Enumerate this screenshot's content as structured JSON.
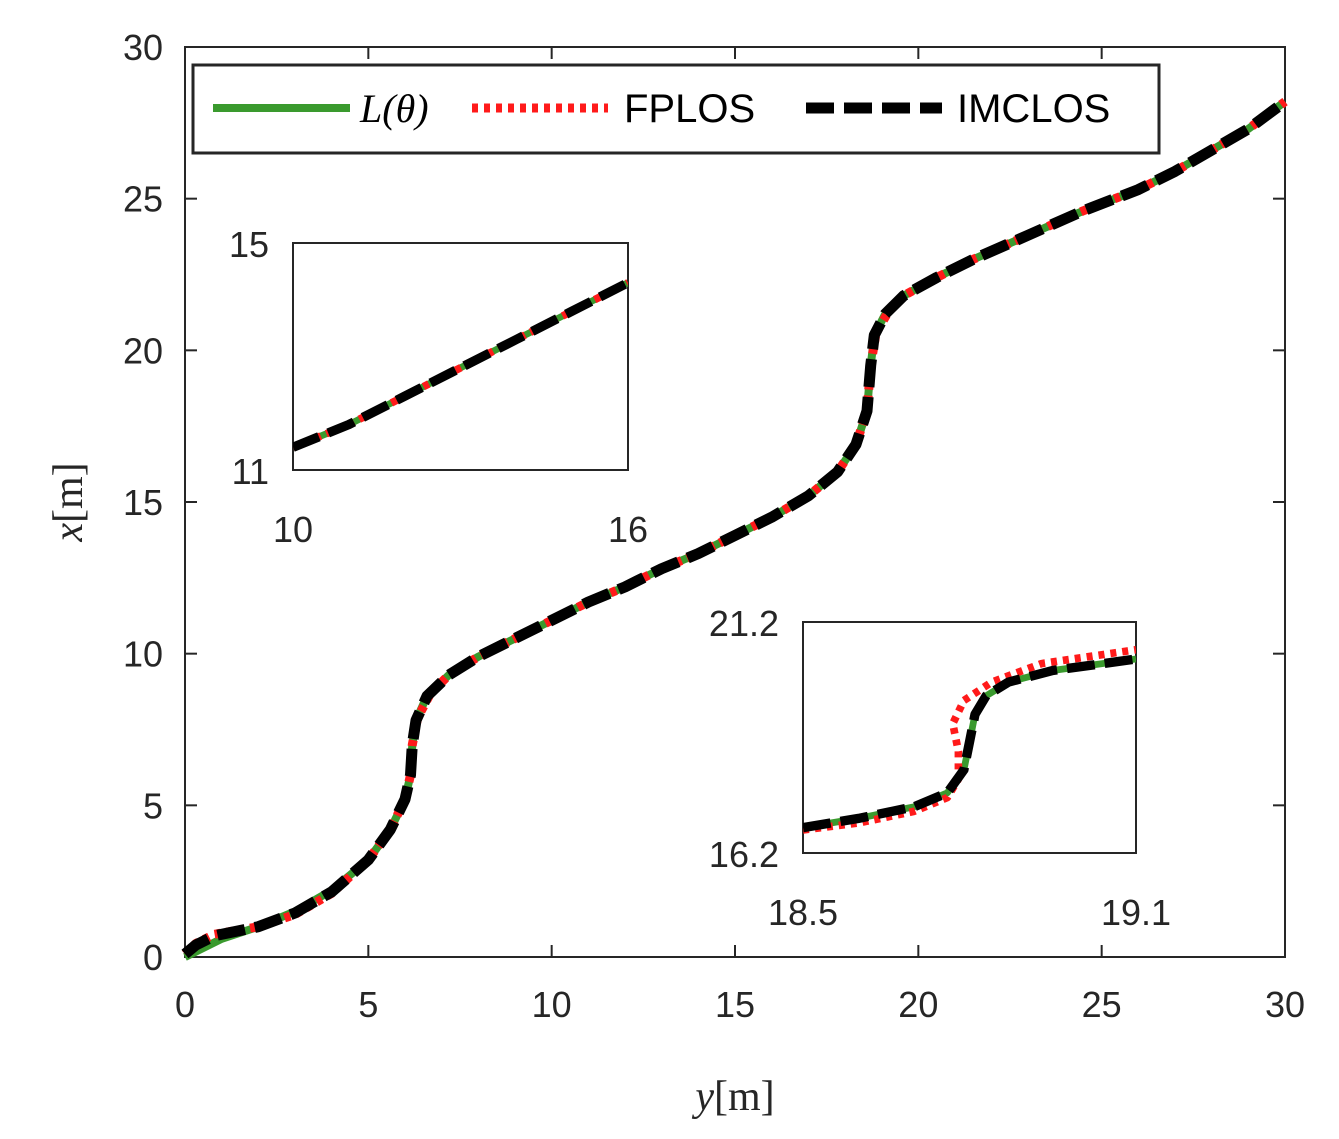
{
  "chart_data": {
    "type": "line",
    "title": "",
    "xlabel": "y[m]",
    "ylabel": "x[m]",
    "xlabel_var": "y",
    "xlabel_unit": "[m]",
    "ylabel_var": "x",
    "ylabel_unit": "[m]",
    "xlim": [
      0,
      30
    ],
    "ylim": [
      0,
      30
    ],
    "xticks": [
      0,
      5,
      10,
      15,
      20,
      25,
      30
    ],
    "yticks": [
      0,
      5,
      10,
      15,
      20,
      25,
      30
    ],
    "grid": false,
    "legend_position": "top",
    "legend": [
      {
        "name": "L(θ)",
        "color": "#3a9a2e",
        "style": "solid"
      },
      {
        "name": "FPLOS",
        "color": "#ff1a1a",
        "style": "dotted"
      },
      {
        "name": "IMCLOS",
        "color": "#000000",
        "style": "dashed"
      }
    ],
    "series": [
      {
        "name": "L(θ)",
        "color": "#3a9a2e",
        "points": [
          [
            0,
            0
          ],
          [
            0.5,
            0.3
          ],
          [
            1,
            0.6
          ],
          [
            2,
            1.0
          ],
          [
            3,
            1.5
          ],
          [
            4,
            2.2
          ],
          [
            5,
            3.2
          ],
          [
            5.6,
            4.2
          ],
          [
            6,
            5.2
          ],
          [
            6.15,
            6.0
          ],
          [
            6.2,
            7.0
          ],
          [
            6.3,
            7.8
          ],
          [
            6.6,
            8.6
          ],
          [
            7.2,
            9.3
          ],
          [
            8,
            9.9
          ],
          [
            9,
            10.5
          ],
          [
            10,
            11.1
          ],
          [
            11,
            11.7
          ],
          [
            12,
            12.2
          ],
          [
            13,
            12.8
          ],
          [
            14,
            13.3
          ],
          [
            15,
            13.9
          ],
          [
            16,
            14.5
          ],
          [
            17,
            15.2
          ],
          [
            17.8,
            16.0
          ],
          [
            18.3,
            16.9
          ],
          [
            18.6,
            18.0
          ],
          [
            18.7,
            19.5
          ],
          [
            18.8,
            20.5
          ],
          [
            19.1,
            21.2
          ],
          [
            19.6,
            21.8
          ],
          [
            20.5,
            22.4
          ],
          [
            21.5,
            23.0
          ],
          [
            23,
            23.8
          ],
          [
            24.5,
            24.6
          ],
          [
            26,
            25.3
          ],
          [
            27,
            25.9
          ],
          [
            28,
            26.6
          ],
          [
            29,
            27.3
          ],
          [
            30,
            28.2
          ]
        ]
      },
      {
        "name": "FPLOS",
        "color": "#ff1a1a",
        "points": [
          [
            0,
            0.1
          ],
          [
            0.3,
            0.45
          ],
          [
            0.8,
            0.75
          ],
          [
            2,
            1.0
          ],
          [
            3,
            1.4
          ],
          [
            4,
            2.1
          ],
          [
            5,
            3.2
          ],
          [
            5.6,
            4.2
          ],
          [
            6,
            5.2
          ],
          [
            6.15,
            6.0
          ],
          [
            6.2,
            7.0
          ],
          [
            6.35,
            7.9
          ],
          [
            6.7,
            8.7
          ],
          [
            7.2,
            9.3
          ],
          [
            8,
            9.9
          ],
          [
            9,
            10.5
          ],
          [
            10,
            11.1
          ],
          [
            11,
            11.7
          ],
          [
            12,
            12.2
          ],
          [
            13,
            12.8
          ],
          [
            14,
            13.3
          ],
          [
            15,
            13.9
          ],
          [
            16,
            14.5
          ],
          [
            17,
            15.2
          ],
          [
            17.8,
            16.0
          ],
          [
            18.3,
            16.9
          ],
          [
            18.6,
            18.0
          ],
          [
            18.7,
            19.5
          ],
          [
            18.85,
            20.6
          ],
          [
            19.2,
            21.3
          ],
          [
            19.6,
            21.8
          ],
          [
            20.5,
            22.4
          ],
          [
            21.5,
            23.0
          ],
          [
            23,
            23.8
          ],
          [
            24.5,
            24.6
          ],
          [
            26,
            25.3
          ],
          [
            27,
            25.9
          ],
          [
            28,
            26.6
          ],
          [
            29,
            27.3
          ],
          [
            30,
            28.2
          ]
        ]
      },
      {
        "name": "IMCLOS",
        "color": "#000000",
        "points": [
          [
            0,
            0.1
          ],
          [
            0.3,
            0.4
          ],
          [
            0.8,
            0.7
          ],
          [
            2,
            1.0
          ],
          [
            3,
            1.45
          ],
          [
            4,
            2.15
          ],
          [
            5,
            3.2
          ],
          [
            5.6,
            4.2
          ],
          [
            6,
            5.2
          ],
          [
            6.15,
            6.0
          ],
          [
            6.2,
            7.0
          ],
          [
            6.3,
            7.8
          ],
          [
            6.6,
            8.6
          ],
          [
            7.2,
            9.3
          ],
          [
            8,
            9.9
          ],
          [
            9,
            10.5
          ],
          [
            10,
            11.1
          ],
          [
            11,
            11.7
          ],
          [
            12,
            12.2
          ],
          [
            13,
            12.8
          ],
          [
            14,
            13.3
          ],
          [
            15,
            13.9
          ],
          [
            16,
            14.5
          ],
          [
            17,
            15.2
          ],
          [
            17.8,
            16.0
          ],
          [
            18.3,
            16.9
          ],
          [
            18.6,
            18.0
          ],
          [
            18.7,
            19.5
          ],
          [
            18.8,
            20.5
          ],
          [
            19.1,
            21.2
          ],
          [
            19.6,
            21.8
          ],
          [
            20.5,
            22.4
          ],
          [
            21.5,
            23.0
          ],
          [
            23,
            23.8
          ],
          [
            24.5,
            24.6
          ],
          [
            26,
            25.3
          ],
          [
            27,
            25.9
          ],
          [
            28,
            26.6
          ],
          [
            29,
            27.3
          ],
          [
            30,
            28.2
          ]
        ]
      }
    ],
    "insets": [
      {
        "name": "inset-upper-left",
        "xlim": [
          10,
          16
        ],
        "ylim": [
          11,
          15
        ],
        "xticks": [
          10,
          16
        ],
        "yticks": [
          11,
          15
        ],
        "series": [
          {
            "name": "L(θ)",
            "points": [
              [
                10,
                11.4
              ],
              [
                11,
                11.8
              ],
              [
                12,
                12.3
              ],
              [
                13,
                12.8
              ],
              [
                14,
                13.3
              ],
              [
                15,
                13.8
              ],
              [
                16,
                14.3
              ]
            ]
          },
          {
            "name": "FPLOS",
            "points": [
              [
                10,
                11.4
              ],
              [
                11,
                11.8
              ],
              [
                12,
                12.3
              ],
              [
                13,
                12.8
              ],
              [
                14,
                13.3
              ],
              [
                15,
                13.8
              ],
              [
                16,
                14.3
              ]
            ]
          },
          {
            "name": "IMCLOS",
            "points": [
              [
                10,
                11.4
              ],
              [
                11,
                11.8
              ],
              [
                12,
                12.3
              ],
              [
                13,
                12.8
              ],
              [
                14,
                13.3
              ],
              [
                15,
                13.8
              ],
              [
                16,
                14.3
              ]
            ]
          }
        ]
      },
      {
        "name": "inset-lower-right",
        "xlim": [
          18.5,
          19.1
        ],
        "ylim": [
          16.2,
          21.2
        ],
        "xticks": [
          18.5,
          19.1
        ],
        "yticks": [
          16.2,
          21.2
        ],
        "series": [
          {
            "name": "L(θ)",
            "points": [
              [
                18.5,
                16.75
              ],
              [
                18.6,
                16.95
              ],
              [
                18.7,
                17.2
              ],
              [
                18.76,
                17.5
              ],
              [
                18.79,
                18.0
              ],
              [
                18.8,
                18.6
              ],
              [
                18.81,
                19.2
              ],
              [
                18.83,
                19.6
              ],
              [
                18.87,
                19.9
              ],
              [
                18.95,
                20.15
              ],
              [
                19.1,
                20.4
              ]
            ]
          },
          {
            "name": "FPLOS",
            "points": [
              [
                18.5,
                16.7
              ],
              [
                18.6,
                16.85
              ],
              [
                18.7,
                17.1
              ],
              [
                18.76,
                17.4
              ],
              [
                18.78,
                17.8
              ],
              [
                18.78,
                18.4
              ],
              [
                18.77,
                19.0
              ],
              [
                18.79,
                19.5
              ],
              [
                18.84,
                19.9
              ],
              [
                18.93,
                20.3
              ],
              [
                19.1,
                20.6
              ]
            ]
          },
          {
            "name": "IMCLOS",
            "points": [
              [
                18.5,
                16.75
              ],
              [
                18.6,
                16.95
              ],
              [
                18.7,
                17.2
              ],
              [
                18.76,
                17.5
              ],
              [
                18.79,
                18.0
              ],
              [
                18.8,
                18.6
              ],
              [
                18.81,
                19.2
              ],
              [
                18.83,
                19.6
              ],
              [
                18.87,
                19.9
              ],
              [
                18.95,
                20.15
              ],
              [
                19.1,
                20.4
              ]
            ]
          }
        ]
      }
    ]
  }
}
